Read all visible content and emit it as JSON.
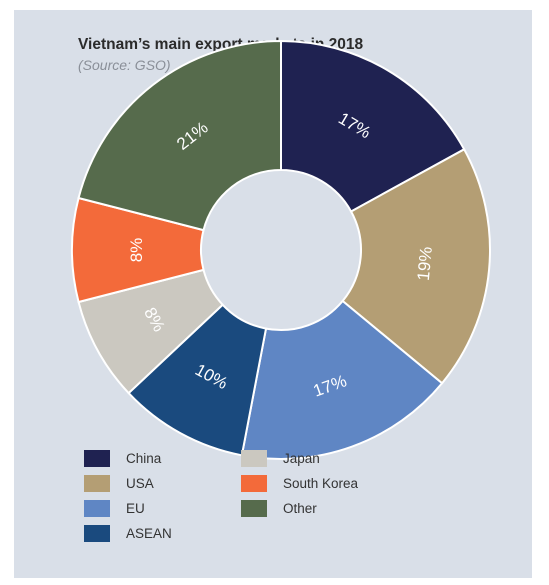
{
  "chart_data": {
    "type": "pie",
    "title": "Vietnam’s main export markets in 2018",
    "subtitle": "(Source: GSO)",
    "series": [
      {
        "name": "China",
        "value": 17,
        "label": "17%",
        "color": "#1f2251"
      },
      {
        "name": "USA",
        "value": 19,
        "label": "19%",
        "color": "#b49e74"
      },
      {
        "name": "EU",
        "value": 17,
        "label": "17%",
        "color": "#5f86c4"
      },
      {
        "name": "ASEAN",
        "value": 10,
        "label": "10%",
        "color": "#1a4a7e"
      },
      {
        "name": "Japan",
        "value": 8,
        "label": "8%",
        "color": "#cbc8c0"
      },
      {
        "name": "South Korea",
        "value": 8,
        "label": "8%",
        "color": "#f36a3a"
      },
      {
        "name": "Other",
        "value": 21,
        "label": "21%",
        "color": "#566b4c"
      }
    ],
    "legend_order": [
      "China",
      "Japan",
      "USA",
      "South Korea",
      "EU",
      "Other",
      "ASEAN"
    ]
  }
}
